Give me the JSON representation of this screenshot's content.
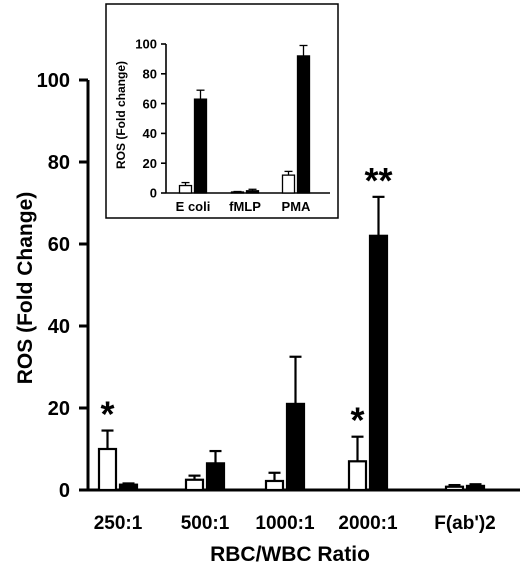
{
  "chart_data": [
    {
      "type": "bar",
      "title": "",
      "xlabel": "RBC/WBC Ratio",
      "ylabel": "ROS (Fold Change)",
      "ylim": [
        0,
        100
      ],
      "yticks": [
        0,
        20,
        40,
        60,
        80,
        100
      ],
      "categories": [
        "250:1",
        "500:1",
        "1000:1",
        "2000:1",
        "F(ab')2"
      ],
      "bar_colors": [
        "#ffffff",
        "#000000"
      ],
      "series": [
        {
          "values": [
            10,
            2.5,
            2.2,
            7,
            0.8
          ],
          "errors": [
            4.5,
            1.0,
            2.0,
            6,
            0.4
          ]
        },
        {
          "values": [
            1.3,
            6.5,
            21,
            62,
            1.0
          ],
          "errors": [
            0.3,
            3.0,
            11.5,
            9.5,
            0.4
          ]
        }
      ],
      "annotations": [
        {
          "text": "*",
          "category": "250:1"
        },
        {
          "text": "*",
          "category": "2000:1"
        },
        {
          "text": "**",
          "category": "2000:1"
        }
      ]
    },
    {
      "type": "bar",
      "title": "",
      "xlabel": "",
      "ylabel": "ROS (Fold change)",
      "ylim": [
        0,
        100
      ],
      "yticks": [
        0,
        20,
        40,
        60,
        80,
        100
      ],
      "categories": [
        "E coli",
        "fMLP",
        "PMA"
      ],
      "bar_colors": [
        "#ffffff",
        "#000000"
      ],
      "series": [
        {
          "values": [
            5,
            0.5,
            12
          ],
          "errors": [
            2,
            0.5,
            2.5
          ]
        },
        {
          "values": [
            63,
            1.5,
            92
          ],
          "errors": [
            6,
            1,
            7
          ]
        }
      ]
    }
  ]
}
